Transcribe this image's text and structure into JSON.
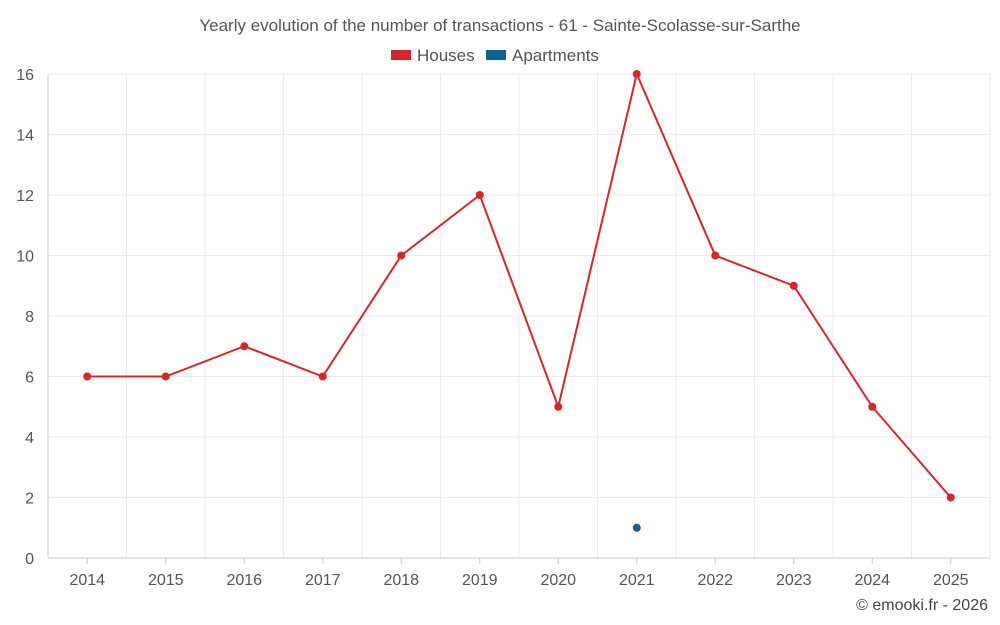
{
  "chart_data": {
    "type": "line",
    "title": "Yearly evolution of the number of transactions - 61 - Sainte-Scolasse-sur-Sarthe",
    "categories": [
      "2014",
      "2015",
      "2016",
      "2017",
      "2018",
      "2019",
      "2020",
      "2021",
      "2022",
      "2023",
      "2024",
      "2025"
    ],
    "series": [
      {
        "name": "Houses",
        "color": "#d62728",
        "values": [
          6,
          6,
          7,
          6,
          10,
          12,
          5,
          16,
          10,
          9,
          5,
          2
        ]
      },
      {
        "name": "Apartments",
        "color": "#0d6295",
        "values": [
          null,
          null,
          null,
          null,
          null,
          null,
          null,
          1,
          null,
          null,
          null,
          null
        ]
      }
    ],
    "yticks": [
      "0",
      "2",
      "4",
      "6",
      "8",
      "10",
      "12",
      "14",
      "16"
    ],
    "ylim": [
      0,
      16
    ],
    "xlabel": "",
    "ylabel": "",
    "grid": true,
    "legend_position": "top-center"
  },
  "credit": "© emooki.fr - 2026"
}
